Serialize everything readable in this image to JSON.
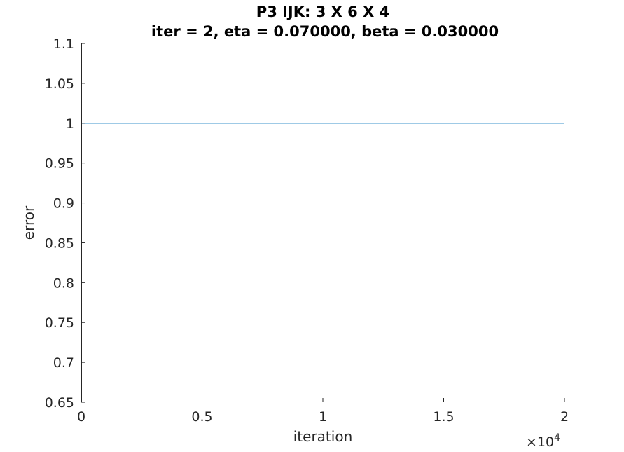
{
  "chart_data": {
    "type": "line",
    "title_line1": "P3 IJK: 3 X 6 X 4",
    "title_line2": "iter = 2, eta = 0.070000, beta = 0.030000",
    "xlabel": "iteration",
    "ylabel": "error",
    "x_exponent_base": "×10",
    "x_exponent_power": "4",
    "xlim": [
      0,
      20000
    ],
    "ylim": [
      0.65,
      1.1
    ],
    "x_ticks": [
      {
        "value": 0,
        "label": "0"
      },
      {
        "value": 5000,
        "label": "0.5"
      },
      {
        "value": 10000,
        "label": "1"
      },
      {
        "value": 15000,
        "label": "1.5"
      },
      {
        "value": 20000,
        "label": "2"
      }
    ],
    "y_ticks": [
      {
        "value": 0.65,
        "label": "0.65"
      },
      {
        "value": 0.7,
        "label": "0.7"
      },
      {
        "value": 0.75,
        "label": "0.75"
      },
      {
        "value": 0.8,
        "label": "0.8"
      },
      {
        "value": 0.85,
        "label": "0.85"
      },
      {
        "value": 0.9,
        "label": "0.9"
      },
      {
        "value": 0.95,
        "label": "0.95"
      },
      {
        "value": 1.0,
        "label": "1"
      },
      {
        "value": 1.05,
        "label": "1.05"
      },
      {
        "value": 1.1,
        "label": "1.1"
      }
    ],
    "series": [
      {
        "color": "#0072bd",
        "x": [
          0,
          5,
          10,
          20,
          50,
          100,
          200,
          500,
          1000,
          2000,
          5000,
          10000,
          15000,
          20000
        ],
        "y": [
          0.65,
          1.085,
          1.0,
          1.0,
          1.0,
          1.0,
          1.0,
          1.0,
          1.0,
          1.0,
          1.0,
          1.0,
          1.0,
          1.0
        ]
      }
    ],
    "grid": false,
    "legend": "none"
  }
}
